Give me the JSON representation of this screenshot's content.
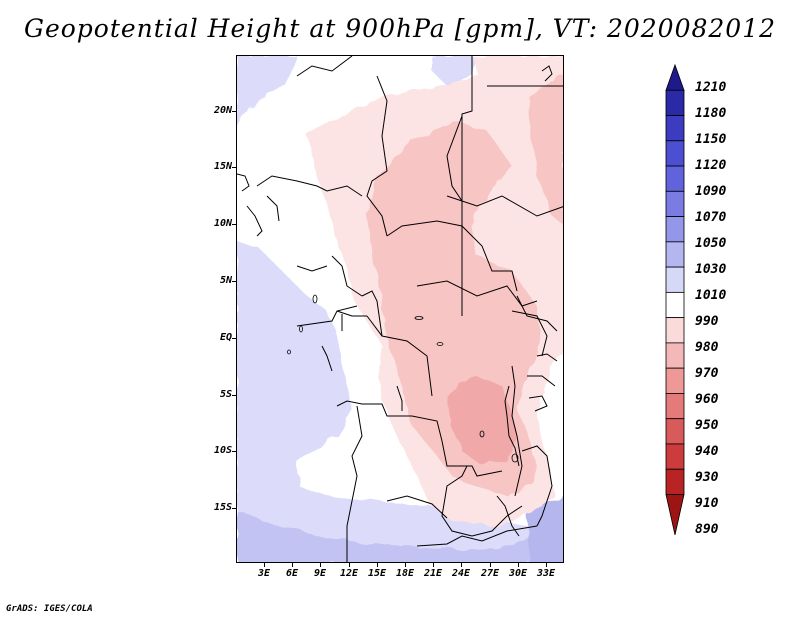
{
  "title": "Geopotential Height at 900hPa [gpm], VT: 2020082012",
  "credit": "GrADS: IGES/COLA",
  "map": {
    "region": "Central Africa",
    "lat_labels": [
      "20N",
      "15N",
      "10N",
      "5N",
      "EQ",
      "5S",
      "10S",
      "15S"
    ],
    "lon_labels": [
      "3E",
      "6E",
      "9E",
      "12E",
      "15E",
      "18E",
      "21E",
      "24E",
      "27E",
      "30E",
      "33E"
    ]
  },
  "colorbar": {
    "labels": [
      "1210",
      "1180",
      "1150",
      "1120",
      "1090",
      "1070",
      "1050",
      "1030",
      "1010",
      "990",
      "980",
      "970",
      "960",
      "950",
      "940",
      "930",
      "910",
      "890"
    ],
    "colors": [
      "#1e1a8c",
      "#2a2aa8",
      "#3c3cc0",
      "#4d4fd2",
      "#6163dc",
      "#7a7ce4",
      "#9496ea",
      "#b4b6f0",
      "#d6d8f8",
      "#ffffff",
      "#fbdada",
      "#f5b8b8",
      "#ee9898",
      "#e47a7a",
      "#d95a5a",
      "#cc3c3c",
      "#b82424",
      "#9c1414"
    ]
  }
}
